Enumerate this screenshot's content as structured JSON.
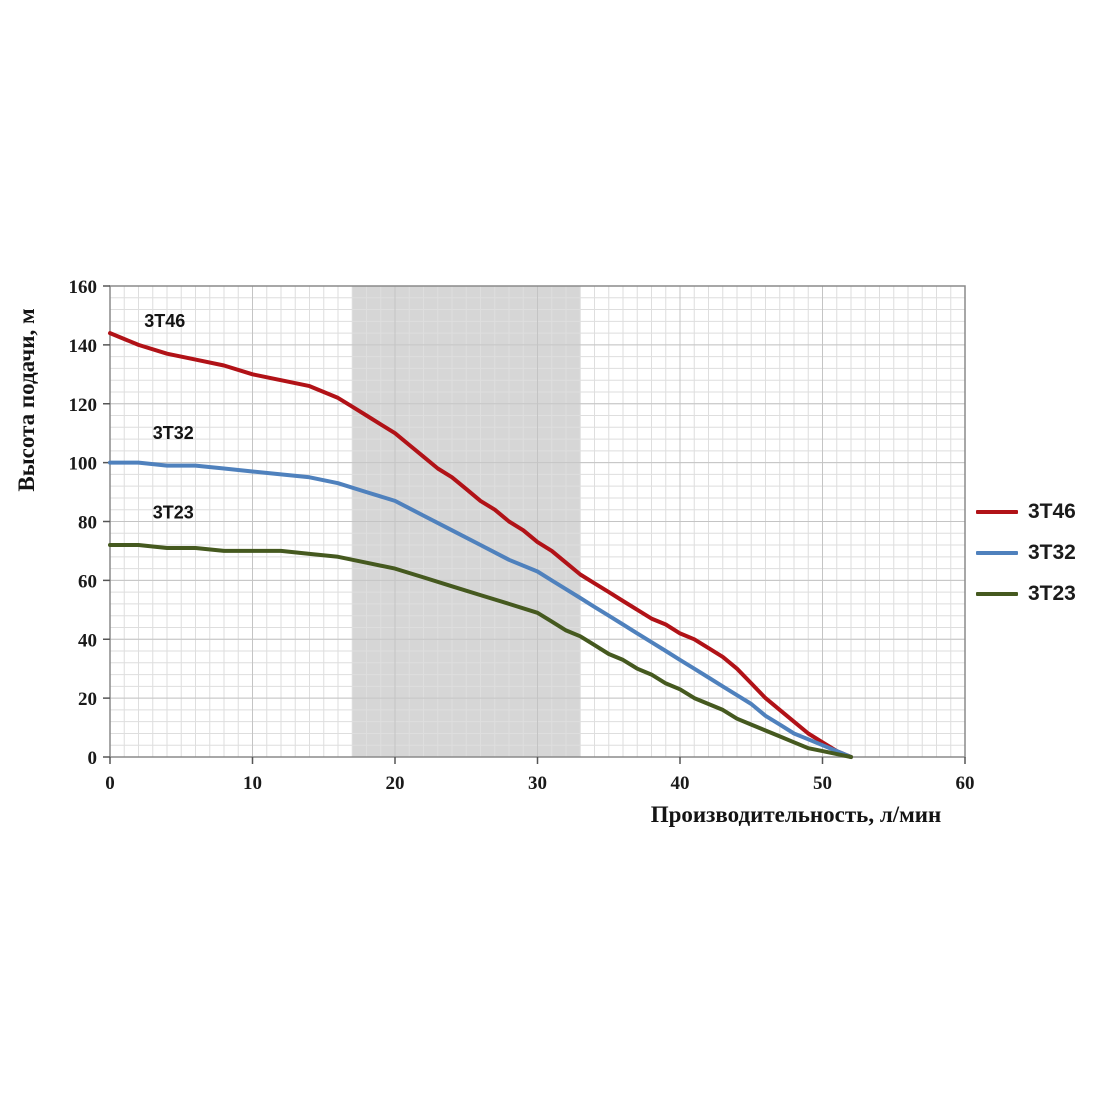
{
  "page": {
    "background": "#ffffff"
  },
  "chart_data": {
    "type": "line",
    "title": "",
    "xlabel": "Производительность, л/мин",
    "ylabel": "Высота подачи, м",
    "xlim": [
      0,
      60
    ],
    "ylim": [
      0,
      160
    ],
    "xticks": [
      0,
      10,
      20,
      30,
      40,
      50,
      60
    ],
    "yticks": [
      0,
      20,
      40,
      60,
      80,
      100,
      120,
      140,
      160
    ],
    "grid": true,
    "minor_grid": {
      "x_step": 1,
      "y_step": 4
    },
    "legend_position": "right",
    "shaded_band": {
      "x_from": 17,
      "x_to": 33,
      "color": "#d6d6d6"
    },
    "grid_colors": {
      "minor": "#dedede",
      "major": "#c4c4c4",
      "border": "#8a8a8a",
      "tick": "#555555"
    },
    "series": [
      {
        "name": "3T46",
        "color": "#b11217",
        "label_pos": [
          2.4,
          146
        ],
        "points": [
          [
            0,
            144
          ],
          [
            2,
            140
          ],
          [
            4,
            137
          ],
          [
            6,
            135
          ],
          [
            8,
            133
          ],
          [
            10,
            130
          ],
          [
            12,
            128
          ],
          [
            14,
            126
          ],
          [
            16,
            122
          ],
          [
            17,
            119
          ],
          [
            18,
            116
          ],
          [
            19,
            113
          ],
          [
            20,
            110
          ],
          [
            21,
            106
          ],
          [
            22,
            102
          ],
          [
            23,
            98
          ],
          [
            24,
            95
          ],
          [
            25,
            91
          ],
          [
            26,
            87
          ],
          [
            27,
            84
          ],
          [
            28,
            80
          ],
          [
            29,
            77
          ],
          [
            30,
            73
          ],
          [
            31,
            70
          ],
          [
            32,
            66
          ],
          [
            33,
            62
          ],
          [
            34,
            59
          ],
          [
            35,
            56
          ],
          [
            36,
            53
          ],
          [
            37,
            50
          ],
          [
            38,
            47
          ],
          [
            39,
            45
          ],
          [
            40,
            42
          ],
          [
            41,
            40
          ],
          [
            42,
            37
          ],
          [
            43,
            34
          ],
          [
            44,
            30
          ],
          [
            45,
            25
          ],
          [
            46,
            20
          ],
          [
            47,
            16
          ],
          [
            48,
            12
          ],
          [
            49,
            8
          ],
          [
            50,
            5
          ],
          [
            51,
            2
          ],
          [
            52,
            0
          ]
        ]
      },
      {
        "name": "3T32",
        "color": "#4f81bd",
        "label_pos": [
          3.0,
          108
        ],
        "points": [
          [
            0,
            100
          ],
          [
            2,
            100
          ],
          [
            4,
            99
          ],
          [
            6,
            99
          ],
          [
            8,
            98
          ],
          [
            10,
            97
          ],
          [
            12,
            96
          ],
          [
            14,
            95
          ],
          [
            16,
            93
          ],
          [
            18,
            90
          ],
          [
            20,
            87
          ],
          [
            22,
            82
          ],
          [
            24,
            77
          ],
          [
            26,
            72
          ],
          [
            28,
            67
          ],
          [
            30,
            63
          ],
          [
            31,
            60
          ],
          [
            32,
            57
          ],
          [
            33,
            54
          ],
          [
            34,
            51
          ],
          [
            35,
            48
          ],
          [
            36,
            45
          ],
          [
            37,
            42
          ],
          [
            38,
            39
          ],
          [
            39,
            36
          ],
          [
            40,
            33
          ],
          [
            41,
            30
          ],
          [
            42,
            27
          ],
          [
            43,
            24
          ],
          [
            44,
            21
          ],
          [
            45,
            18
          ],
          [
            46,
            14
          ],
          [
            47,
            11
          ],
          [
            48,
            8
          ],
          [
            49,
            6
          ],
          [
            50,
            4
          ],
          [
            51,
            2
          ],
          [
            52,
            0
          ]
        ]
      },
      {
        "name": "3T23",
        "color": "#45591f",
        "label_pos": [
          3.0,
          81
        ],
        "points": [
          [
            0,
            72
          ],
          [
            2,
            72
          ],
          [
            4,
            71
          ],
          [
            6,
            71
          ],
          [
            8,
            70
          ],
          [
            10,
            70
          ],
          [
            12,
            70
          ],
          [
            14,
            69
          ],
          [
            16,
            68
          ],
          [
            18,
            66
          ],
          [
            20,
            64
          ],
          [
            22,
            61
          ],
          [
            24,
            58
          ],
          [
            26,
            55
          ],
          [
            28,
            52
          ],
          [
            30,
            49
          ],
          [
            31,
            46
          ],
          [
            32,
            43
          ],
          [
            33,
            41
          ],
          [
            34,
            38
          ],
          [
            35,
            35
          ],
          [
            36,
            33
          ],
          [
            37,
            30
          ],
          [
            38,
            28
          ],
          [
            39,
            25
          ],
          [
            40,
            23
          ],
          [
            41,
            20
          ],
          [
            42,
            18
          ],
          [
            43,
            16
          ],
          [
            44,
            13
          ],
          [
            45,
            11
          ],
          [
            46,
            9
          ],
          [
            47,
            7
          ],
          [
            48,
            5
          ],
          [
            49,
            3
          ],
          [
            50,
            2
          ],
          [
            51,
            1
          ],
          [
            52,
            0
          ]
        ]
      }
    ]
  }
}
